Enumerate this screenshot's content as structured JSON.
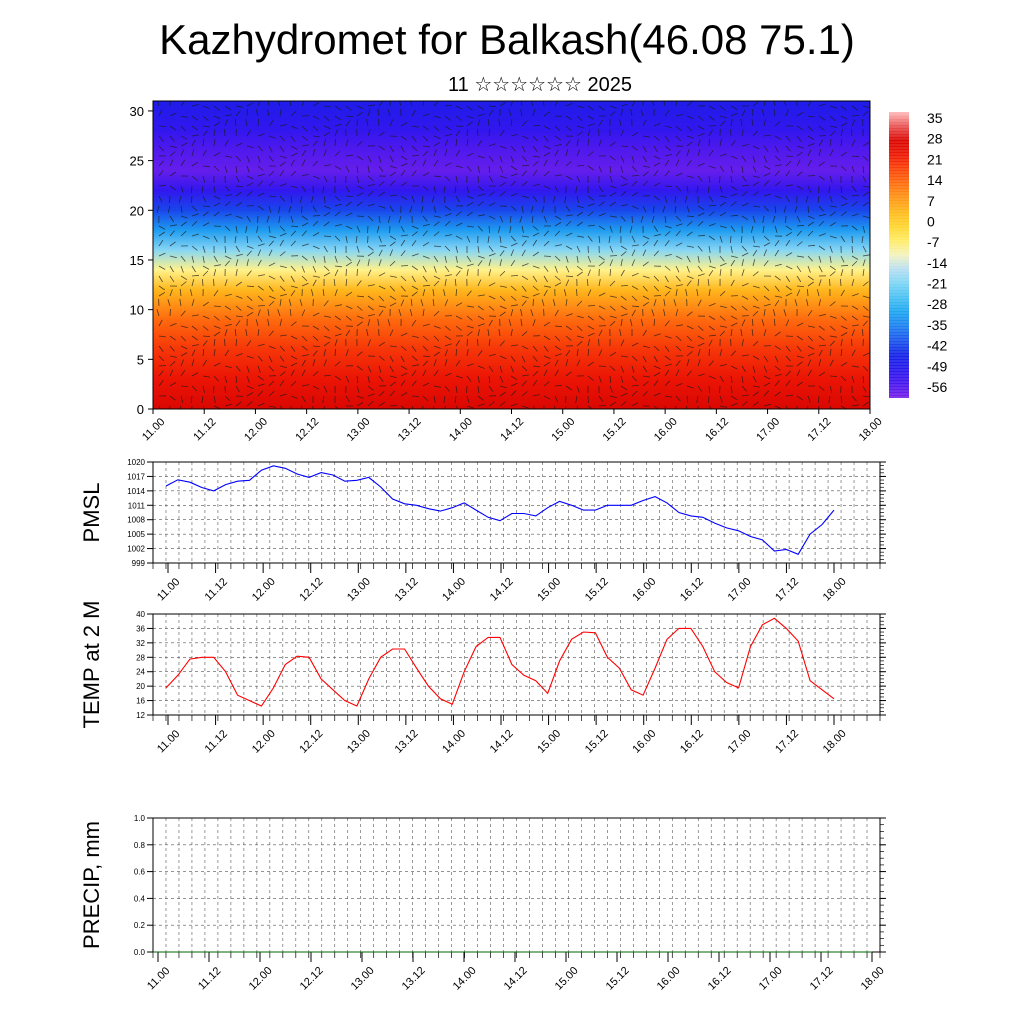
{
  "header": {
    "title": "Kazhydromet for Balkash(46.08 75.1)",
    "subtitle": "11 ☆☆☆☆☆☆ 2025"
  },
  "chart_data": [
    {
      "type": "heatmap",
      "title": "",
      "xlabel": "",
      "ylabel": "",
      "x_ticks": [
        "11.00",
        "11.12",
        "12.00",
        "12.12",
        "13.00",
        "13.12",
        "14.00",
        "14.12",
        "15.00",
        "15.12",
        "16.00",
        "16.12",
        "17.00",
        "17.12",
        "18.00"
      ],
      "y_ticks": [
        0,
        5,
        10,
        15,
        20,
        25,
        30
      ],
      "ylim": [
        0,
        31
      ],
      "colorbar_ticks": [
        "35",
        "28",
        "21",
        "14",
        "7",
        "0",
        "-7",
        "-14",
        "-21",
        "-28",
        "-35",
        "-42",
        "-49",
        "-56"
      ],
      "colorbar_range": [
        -60,
        38
      ],
      "overlay": "wind vectors",
      "layers": [
        {
          "level": 0,
          "value": 28
        },
        {
          "level": 3,
          "value": 24
        },
        {
          "level": 6,
          "value": 20
        },
        {
          "level": 9,
          "value": 14
        },
        {
          "level": 12,
          "value": 4
        },
        {
          "level": 14,
          "value": -8
        },
        {
          "level": 16,
          "value": -20
        },
        {
          "level": 18,
          "value": -32
        },
        {
          "level": 20,
          "value": -42
        },
        {
          "level": 22,
          "value": -52
        },
        {
          "level": 24,
          "value": -58
        },
        {
          "level": 26,
          "value": -56
        },
        {
          "level": 28,
          "value": -52
        },
        {
          "level": 31,
          "value": -48
        }
      ]
    },
    {
      "type": "line",
      "ylabel": "PMSL",
      "x_ticks": [
        "11.00",
        "11.12",
        "12.00",
        "12.12",
        "13.00",
        "13.12",
        "14.00",
        "14.12",
        "15.00",
        "15.12",
        "16.00",
        "16.12",
        "17.00",
        "17.12",
        "18.00"
      ],
      "y_ticks": [
        999,
        1002,
        1005,
        1008,
        1011,
        1014,
        1017,
        1020
      ],
      "ylim": [
        999,
        1020
      ],
      "grid": true,
      "line_color": "#0000ff",
      "series": [
        {
          "values": [
            1015,
            1016.3,
            1015.8,
            1014.7,
            1014,
            1015.3,
            1016,
            1016.2,
            1018.3,
            1019.2,
            1018.7,
            1017.5,
            1016.8,
            1017.8,
            1017.3,
            1016,
            1016.2,
            1016.8,
            1014.8,
            1012.3,
            1011.3,
            1011,
            1010.3,
            1009.8,
            1010.5,
            1011.5,
            1010,
            1008.5,
            1007.8,
            1009.3,
            1009.3,
            1008.8,
            1010.5,
            1011.8,
            1011,
            1010,
            1010,
            1011,
            1011,
            1011,
            1012,
            1012.8,
            1011.5,
            1009.5,
            1008.8,
            1008.5,
            1007.3,
            1006.3,
            1005.7,
            1004.5,
            1003.8,
            1001.5,
            1001.8,
            1000.8,
            1005,
            1007,
            1010
          ]
        }
      ]
    },
    {
      "type": "line",
      "ylabel": "TEMP at 2 M",
      "x_ticks": [
        "11.00",
        "11.12",
        "12.00",
        "12.12",
        "13.00",
        "13.12",
        "14.00",
        "14.12",
        "15.00",
        "15.12",
        "16.00",
        "16.12",
        "17.00",
        "17.12",
        "18.00"
      ],
      "y_ticks": [
        12,
        16,
        20,
        24,
        28,
        32,
        36,
        40
      ],
      "ylim": [
        12,
        40
      ],
      "grid": true,
      "line_color": "#ff0000",
      "series": [
        {
          "values": [
            19.5,
            23,
            27.5,
            28,
            28,
            24,
            17.5,
            16,
            14.5,
            19.5,
            26,
            28.3,
            28,
            22,
            19,
            16,
            14.5,
            22,
            28,
            30.3,
            30.3,
            25,
            20,
            16.5,
            15,
            24,
            31,
            33.5,
            33.5,
            26,
            23,
            21.5,
            18,
            27,
            33,
            35,
            34.8,
            28,
            25,
            19,
            17.5,
            25,
            33,
            36,
            36,
            31,
            24,
            21,
            19.5,
            31,
            37,
            38.8,
            36,
            32.5,
            21.5,
            19,
            16.5
          ]
        }
      ]
    },
    {
      "type": "line",
      "ylabel": "PRECIP, mm",
      "x_ticks": [
        "11.00",
        "11.12",
        "12.00",
        "12.12",
        "13.00",
        "13.12",
        "14.00",
        "14.12",
        "15.00",
        "15.12",
        "16.00",
        "16.12",
        "17.00",
        "17.12",
        "18.00"
      ],
      "y_ticks": [
        "0.0",
        "0.2",
        "0.4",
        "0.6",
        "0.8",
        "1.0"
      ],
      "ylim": [
        0,
        1
      ],
      "grid": true,
      "line_color": "#006400",
      "series": [
        {
          "values": [
            0,
            0,
            0,
            0,
            0,
            0,
            0,
            0,
            0,
            0,
            0,
            0,
            0,
            0,
            0,
            0,
            0,
            0,
            0,
            0,
            0,
            0,
            0,
            0,
            0,
            0,
            0,
            0,
            0,
            0,
            0,
            0,
            0,
            0,
            0,
            0,
            0,
            0,
            0,
            0,
            0,
            0,
            0,
            0,
            0,
            0,
            0,
            0,
            0,
            0,
            0,
            0,
            0,
            0,
            0,
            0,
            0,
            0,
            0
          ]
        }
      ]
    }
  ]
}
